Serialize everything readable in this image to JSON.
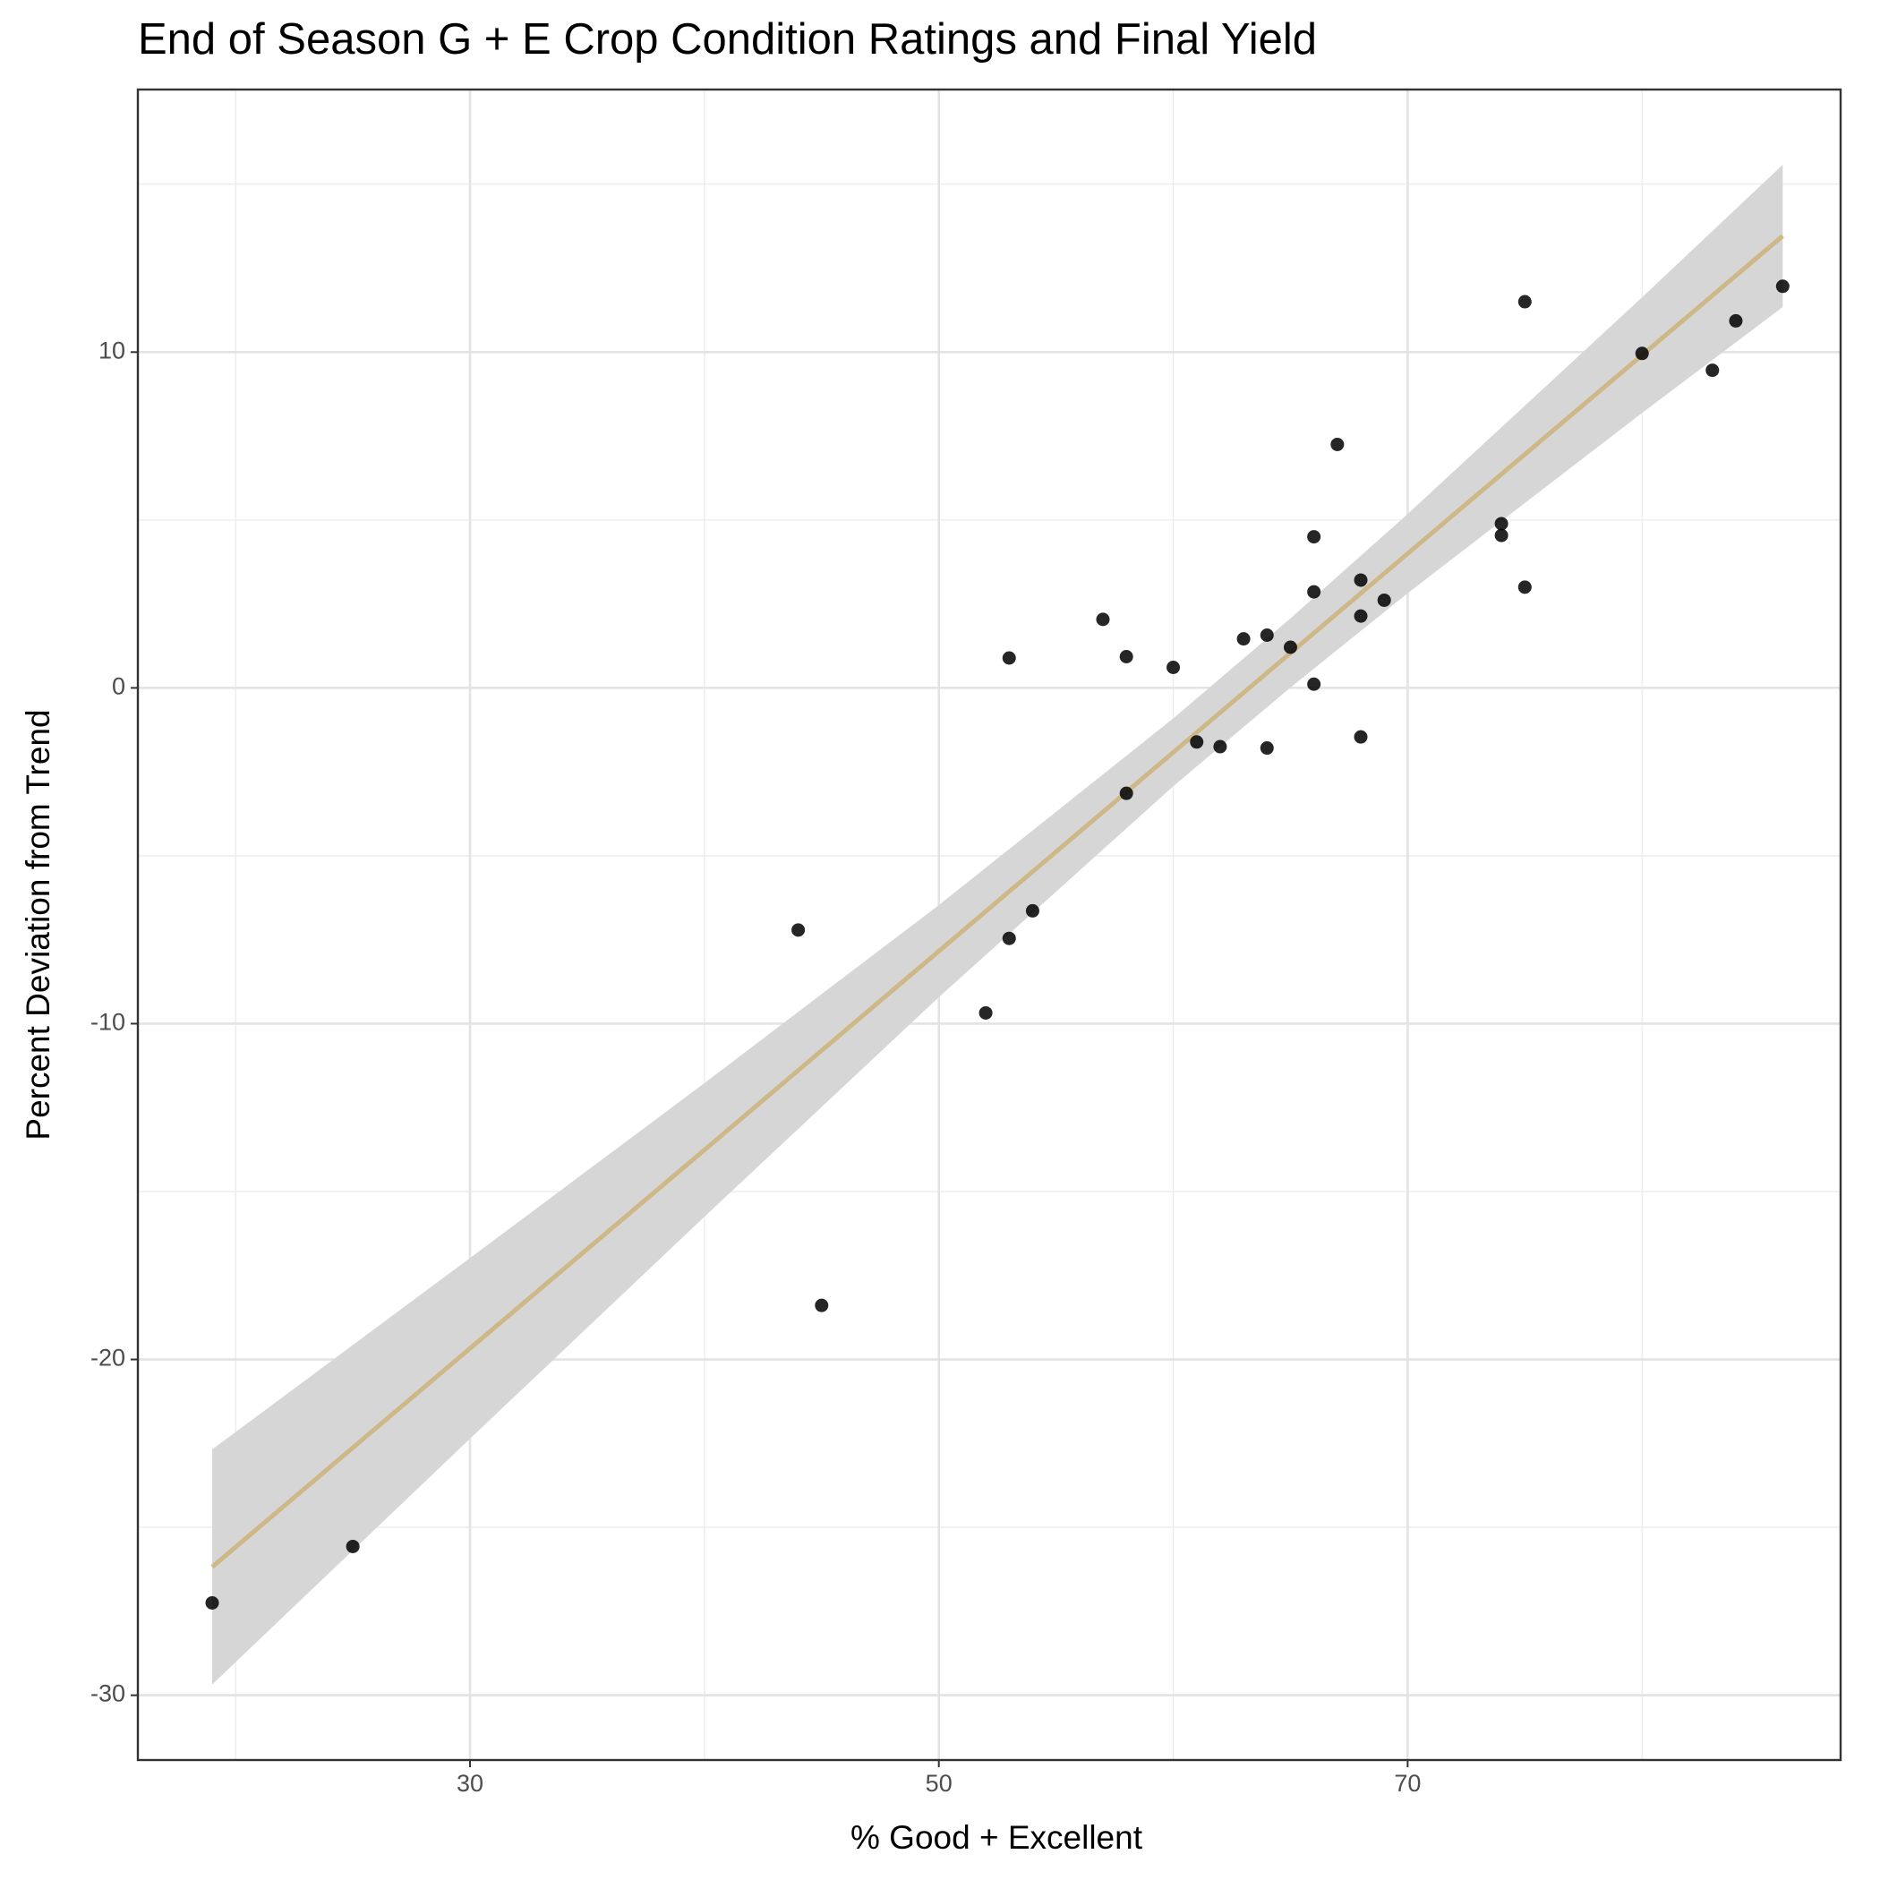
{
  "chart_data": {
    "type": "scatter",
    "title": "End of Season G + E Crop Condition Ratings and Final Yield",
    "x_label": "% Good + Excellent",
    "y_label": "Percent Deviation from Trend",
    "xlim": [
      15.83,
      88.47
    ],
    "ylim": [
      -31.93,
      17.82
    ],
    "xticks": [
      30,
      50,
      70
    ],
    "yticks": [
      -30,
      -20,
      -10,
      0,
      10
    ],
    "x_minor_grid": [
      20,
      40,
      60,
      80
    ],
    "y_minor_grid": [
      -25,
      -15,
      -5,
      5,
      15
    ],
    "grid": true,
    "point_color": "#000000",
    "x": [
      19,
      25,
      44,
      45,
      52,
      53,
      54,
      53,
      57,
      58,
      58,
      60,
      61,
      62,
      63,
      64,
      64,
      65,
      66,
      66,
      66,
      67,
      68,
      68,
      68,
      69,
      74,
      74,
      75,
      75,
      80,
      83,
      84,
      86
    ],
    "values": [
      -27.25,
      -25.57,
      -7.21,
      -18.39,
      -9.68,
      -7.46,
      -6.64,
      0.89,
      2.04,
      0.93,
      -3.14,
      0.61,
      -1.61,
      -1.75,
      1.46,
      1.57,
      -1.79,
      1.21,
      4.5,
      2.86,
      0.11,
      7.25,
      3.21,
      2.14,
      -1.46,
      2.61,
      4.89,
      4.54,
      11.5,
      3.0,
      9.96,
      9.46,
      10.93,
      11.96
    ],
    "fit": {
      "color": "#cfb887",
      "band_color": "#d6d6d6",
      "x": [
        19,
        30,
        40,
        50,
        60,
        65,
        70,
        80,
        86
      ],
      "y": [
        -26.18,
        -19.67,
        -13.76,
        -7.84,
        -1.92,
        1.04,
        4.0,
        9.91,
        13.46
      ],
      "ymin": [
        -29.68,
        -22.36,
        -15.75,
        -9.21,
        -2.93,
        0.01,
        2.82,
        8.19,
        11.34
      ],
      "ymax": [
        -22.68,
        -16.98,
        -11.77,
        -6.47,
        -0.91,
        2.07,
        5.18,
        11.63,
        15.58
      ]
    }
  }
}
